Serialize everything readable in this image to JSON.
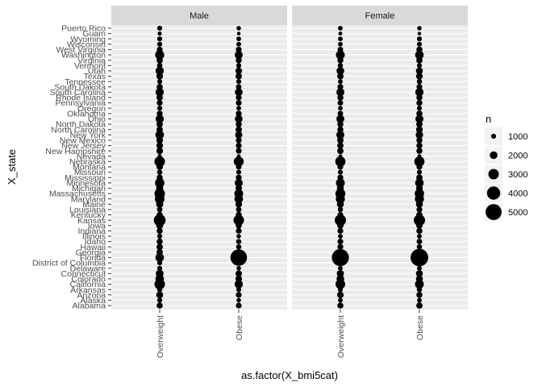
{
  "chart_data": {
    "type": "scatter",
    "xlabel": "as.factor(X_bmi5cat)",
    "ylabel": "X_state",
    "facets": [
      "Male",
      "Female"
    ],
    "x_categories": [
      "Overweight",
      "Obese"
    ],
    "y_categories": [
      "Alabama",
      "Alaska",
      "Arizona",
      "Arkansas",
      "California",
      "Colorado",
      "Connecticut",
      "Delaware",
      "District of Columbia",
      "Florida",
      "Georgia",
      "Hawaii",
      "Idaho",
      "Illinois",
      "Indiana",
      "Iowa",
      "Kansas",
      "Kentucky",
      "Louisiana",
      "Maine",
      "Maryland",
      "Massachusetts",
      "Michigan",
      "Minnesota",
      "Mississippi",
      "Missouri",
      "Montana",
      "Nebraska",
      "Nevada",
      "New Hampshire",
      "New Jersey",
      "New Mexico",
      "New York",
      "North Carolina",
      "North Dakota",
      "Ohio",
      "Oklahoma",
      "Oregon",
      "Pennsylvania",
      "Rhode Island",
      "South Carolina",
      "South Dakota",
      "Tennessee",
      "Texas",
      "Utah",
      "Vermont",
      "Virginia",
      "Washington",
      "West Virginia",
      "Wisconsin",
      "Wyoming",
      "Guam",
      "Puerto Rico"
    ],
    "size_legend": {
      "title": "n",
      "breaks": [
        1000,
        2000,
        3000,
        4000,
        5000
      ]
    },
    "series": [
      {
        "facet": "Male",
        "x": "Overweight",
        "values": [
          1400,
          1000,
          1700,
          1100,
          3000,
          2300,
          2000,
          1000,
          1000,
          2300,
          1500,
          1500,
          1400,
          1000,
          1400,
          1700,
          3500,
          1400,
          1200,
          1800,
          2700,
          3000,
          1800,
          2600,
          1400,
          1100,
          1500,
          3000,
          700,
          1600,
          1600,
          1600,
          2300,
          1500,
          1500,
          2200,
          1300,
          1000,
          1300,
          1500,
          2200,
          1400,
          1000,
          1600,
          2200,
          1200,
          1500,
          2500,
          1300,
          1000,
          1000,
          700,
          1000
        ]
      },
      {
        "facet": "Male",
        "x": "Obese",
        "values": [
          1300,
          800,
          1300,
          1000,
          2200,
          1600,
          1500,
          800,
          700,
          5200,
          1300,
          1100,
          1100,
          800,
          1300,
          1400,
          3000,
          1400,
          1200,
          1600,
          2300,
          2400,
          1500,
          2100,
          1300,
          1000,
          1200,
          2800,
          600,
          1300,
          1300,
          1300,
          1800,
          1500,
          1400,
          2000,
          1300,
          900,
          1300,
          1300,
          2000,
          1200,
          1000,
          1500,
          1600,
          1000,
          1400,
          2100,
          1300,
          900,
          900,
          500,
          800
        ]
      },
      {
        "facet": "Female",
        "x": "Overweight",
        "values": [
          1400,
          900,
          1600,
          1000,
          2700,
          2000,
          1800,
          900,
          900,
          5400,
          1400,
          1300,
          1300,
          900,
          1300,
          1500,
          3300,
          1300,
          1100,
          1700,
          2500,
          2800,
          1700,
          2400,
          1300,
          1000,
          1300,
          2900,
          600,
          1500,
          1500,
          1500,
          2100,
          1400,
          1400,
          2100,
          1200,
          900,
          1200,
          1400,
          2100,
          1300,
          900,
          1500,
          2000,
          1100,
          1400,
          2400,
          1200,
          900,
          900,
          600,
          900
        ]
      },
      {
        "facet": "Female",
        "x": "Obese",
        "values": [
          1500,
          900,
          1400,
          1100,
          2400,
          1700,
          1700,
          900,
          900,
          5600,
          1500,
          1100,
          1200,
          900,
          1400,
          1500,
          3300,
          1500,
          1300,
          1700,
          2500,
          2600,
          1600,
          2300,
          1500,
          1000,
          1300,
          2900,
          600,
          1400,
          1400,
          1400,
          1900,
          1600,
          1500,
          2100,
          1400,
          1000,
          1400,
          1400,
          2200,
          1300,
          1100,
          1600,
          1700,
          1000,
          1500,
          2300,
          1400,
          1000,
          1000,
          500,
          800
        ]
      }
    ]
  }
}
